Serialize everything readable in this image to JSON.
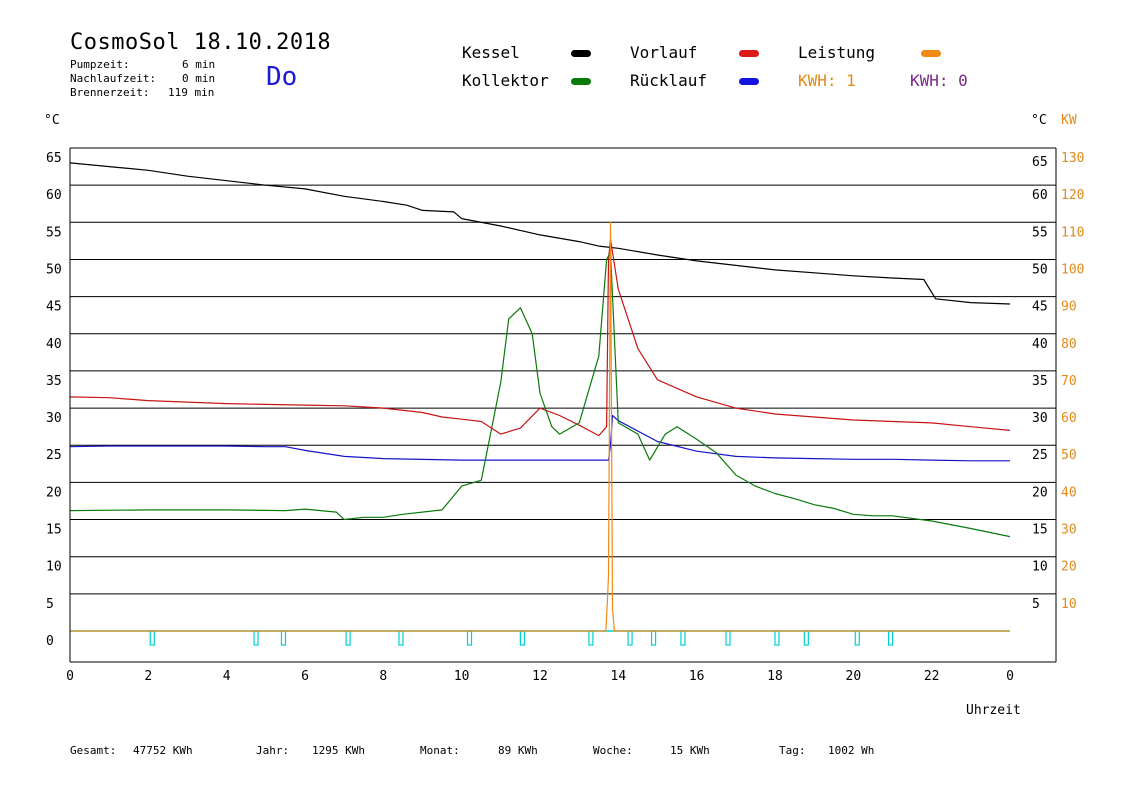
{
  "header": {
    "title": "CosmoSol 18.10.2018",
    "day": "Do",
    "stats": [
      {
        "label": "Pumpzeit:",
        "value": "6 min"
      },
      {
        "label": "Nachlaufzeit:",
        "value": "0 min"
      },
      {
        "label": "Brennerzeit:",
        "value": "119 min"
      }
    ]
  },
  "legend": {
    "kessel": "Kessel",
    "kollektor": "Kollektor",
    "vorlauf": "Vorlauf",
    "ruecklauf": "Rücklauf",
    "leistung": "Leistung",
    "kwh1": "KWH: 1",
    "kwh0": "KWH: 0"
  },
  "axes": {
    "left_unit": "°C",
    "right_unit_c": "°C",
    "right_unit_kw": "KW",
    "x_label": "Uhrzeit"
  },
  "footer": [
    {
      "label": "Gesamt:",
      "value": "47752 KWh"
    },
    {
      "label": "Jahr:",
      "value": "1295 KWh"
    },
    {
      "label": "Monat:",
      "value": "89 KWh"
    },
    {
      "label": "Woche:",
      "value": "15 KWh"
    },
    {
      "label": "Tag:",
      "value": "1002 Wh"
    }
  ],
  "colors": {
    "kessel": "#000000",
    "kollektor": "#0a7a0a",
    "vorlauf": "#c81414",
    "ruecklauf": "#1414c8",
    "leistung": "#f08a14",
    "kwh1": "#e08a1a",
    "kwh0": "#7a2a8a",
    "pump": "#00d0d0"
  },
  "chart_data": {
    "type": "line",
    "xlabel": "Uhrzeit",
    "ylabel": "°C",
    "y2label": "KW",
    "xlim": [
      0,
      24
    ],
    "ylim": [
      0,
      65
    ],
    "y2lim": [
      0,
      130
    ],
    "x_ticks": [
      "0",
      "2",
      "4",
      "6",
      "8",
      "10",
      "12",
      "14",
      "16",
      "18",
      "20",
      "22",
      "0"
    ],
    "y_ticks": [
      0,
      5,
      10,
      15,
      20,
      25,
      30,
      35,
      40,
      45,
      50,
      55,
      60,
      65
    ],
    "y2_ticks": [
      10,
      20,
      30,
      40,
      50,
      60,
      70,
      80,
      90,
      100,
      110,
      120,
      130
    ],
    "grid": "horizontal",
    "series": [
      {
        "name": "Kessel",
        "color": "#000000",
        "points": [
          [
            0,
            63
          ],
          [
            1,
            62.5
          ],
          [
            2,
            62
          ],
          [
            3,
            61.2
          ],
          [
            4,
            60.6
          ],
          [
            5,
            60
          ],
          [
            6,
            59.5
          ],
          [
            7,
            58.5
          ],
          [
            8,
            57.8
          ],
          [
            8.6,
            57.3
          ],
          [
            9,
            56.6
          ],
          [
            9.8,
            56.4
          ],
          [
            10,
            55.5
          ],
          [
            11,
            54.5
          ],
          [
            12,
            53.3
          ],
          [
            13,
            52.4
          ],
          [
            13.5,
            51.8
          ],
          [
            14,
            51.5
          ],
          [
            15,
            50.6
          ],
          [
            16,
            49.8
          ],
          [
            17,
            49.2
          ],
          [
            18,
            48.6
          ],
          [
            19,
            48.2
          ],
          [
            20,
            47.8
          ],
          [
            21,
            47.5
          ],
          [
            21.8,
            47.3
          ],
          [
            22.1,
            44.7
          ],
          [
            23,
            44.2
          ],
          [
            24,
            44
          ]
        ]
      },
      {
        "name": "Vorlauf",
        "color": "#c81414",
        "points": [
          [
            0,
            31.5
          ],
          [
            1,
            31.4
          ],
          [
            2,
            31
          ],
          [
            3,
            30.8
          ],
          [
            4,
            30.6
          ],
          [
            5,
            30.5
          ],
          [
            6,
            30.4
          ],
          [
            7,
            30.3
          ],
          [
            8,
            30
          ],
          [
            9,
            29.4
          ],
          [
            9.5,
            28.8
          ],
          [
            10,
            28.5
          ],
          [
            10.5,
            28.2
          ],
          [
            11,
            26.5
          ],
          [
            11.5,
            27.3
          ],
          [
            12,
            30
          ],
          [
            12.5,
            29
          ],
          [
            13,
            27.7
          ],
          [
            13.5,
            26.3
          ],
          [
            13.7,
            27.5
          ],
          [
            13.75,
            50
          ],
          [
            13.8,
            52.7
          ],
          [
            14,
            46
          ],
          [
            14.5,
            38
          ],
          [
            15,
            33.8
          ],
          [
            16,
            31.5
          ],
          [
            17,
            30
          ],
          [
            18,
            29.2
          ],
          [
            19,
            28.8
          ],
          [
            20,
            28.4
          ],
          [
            21,
            28.2
          ],
          [
            22,
            28
          ],
          [
            23,
            27.5
          ],
          [
            24,
            27
          ]
        ]
      },
      {
        "name": "Rücklauf",
        "color": "#1414c8",
        "points": [
          [
            0,
            24.8
          ],
          [
            1,
            24.9
          ],
          [
            2,
            24.9
          ],
          [
            3,
            24.9
          ],
          [
            4,
            24.9
          ],
          [
            5,
            24.8
          ],
          [
            5.5,
            24.8
          ],
          [
            6,
            24.3
          ],
          [
            7,
            23.5
          ],
          [
            8,
            23.2
          ],
          [
            10,
            23
          ],
          [
            12,
            23
          ],
          [
            13.75,
            23
          ],
          [
            13.8,
            25
          ],
          [
            13.85,
            29
          ],
          [
            14,
            28.3
          ],
          [
            15,
            25.5
          ],
          [
            16,
            24.2
          ],
          [
            17,
            23.5
          ],
          [
            18,
            23.3
          ],
          [
            19,
            23.2
          ],
          [
            20,
            23.1
          ],
          [
            21,
            23.1
          ],
          [
            22,
            23
          ],
          [
            23,
            22.9
          ],
          [
            24,
            22.9
          ]
        ]
      },
      {
        "name": "Kollektor",
        "color": "#0a7a0a",
        "points": [
          [
            0,
            16.2
          ],
          [
            2,
            16.3
          ],
          [
            4,
            16.3
          ],
          [
            5.5,
            16.2
          ],
          [
            6,
            16.4
          ],
          [
            6.8,
            16
          ],
          [
            7,
            15
          ],
          [
            7.5,
            15.3
          ],
          [
            8,
            15.3
          ],
          [
            8.5,
            15.7
          ],
          [
            9.5,
            16.3
          ],
          [
            10,
            19.5
          ],
          [
            10.5,
            20.3
          ],
          [
            11,
            33.5
          ],
          [
            11.2,
            42
          ],
          [
            11.5,
            43.5
          ],
          [
            11.8,
            40
          ],
          [
            12,
            32
          ],
          [
            12.3,
            27.5
          ],
          [
            12.5,
            26.5
          ],
          [
            13,
            28
          ],
          [
            13.5,
            37
          ],
          [
            13.7,
            50
          ],
          [
            13.8,
            51
          ],
          [
            14,
            28
          ],
          [
            14.5,
            26.5
          ],
          [
            14.8,
            23
          ],
          [
            15.2,
            26.5
          ],
          [
            15.5,
            27.5
          ],
          [
            16,
            25.8
          ],
          [
            16.5,
            24
          ],
          [
            17,
            21
          ],
          [
            17.5,
            19.5
          ],
          [
            18,
            18.5
          ],
          [
            18.5,
            17.8
          ],
          [
            19,
            17
          ],
          [
            19.5,
            16.5
          ],
          [
            20,
            15.7
          ],
          [
            20.5,
            15.5
          ],
          [
            21,
            15.5
          ],
          [
            22,
            14.8
          ],
          [
            23,
            13.8
          ],
          [
            24,
            12.7
          ]
        ]
      },
      {
        "name": "Leistung",
        "color": "#f08a14",
        "points": [
          [
            0,
            0
          ],
          [
            13.68,
            0
          ],
          [
            13.72,
            8
          ],
          [
            13.75,
            15
          ],
          [
            13.8,
            110
          ],
          [
            13.85,
            6
          ],
          [
            13.9,
            0
          ],
          [
            24,
            0
          ]
        ]
      }
    ],
    "pump_pulses": [
      2.1,
      4.75,
      5.45,
      7.1,
      8.45,
      10.2,
      11.55,
      13.3,
      14.3,
      14.9,
      15.65,
      16.8,
      18.05,
      18.8,
      20.1,
      20.95
    ]
  }
}
